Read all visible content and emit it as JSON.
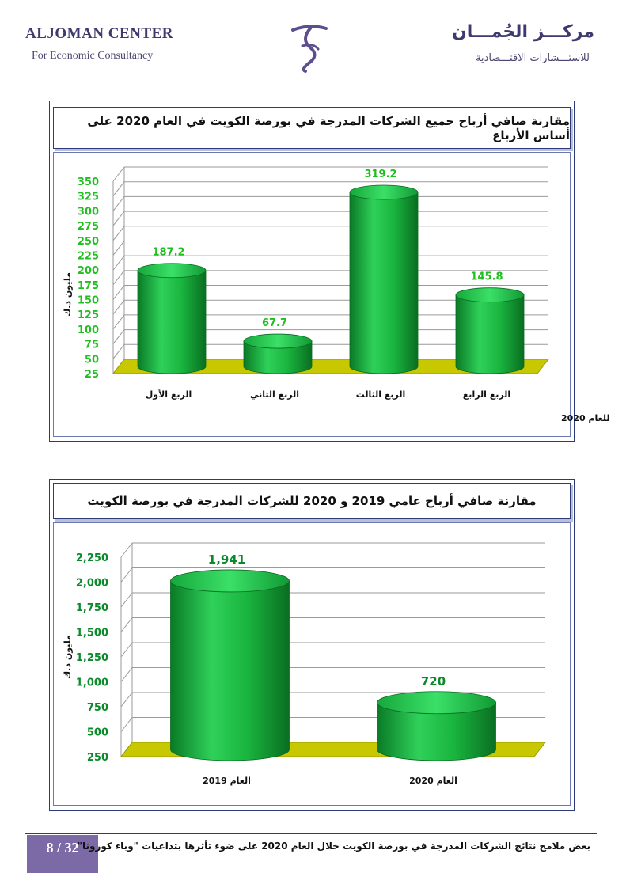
{
  "header": {
    "brand_en": "ALJOMAN CENTER",
    "brand_en_sub": "For Economic Consultancy",
    "brand_ar": "مركـــز الجُمـــان",
    "brand_ar_sub": "للاستـــشارات الاقتـــصادية",
    "logo_icon": "aljoman-logo-icon"
  },
  "chart_data": [
    {
      "type": "bar",
      "title": "مقارنة صافي أرباح جميع الشركات المدرجة في بورصة الكويت في العام 2020 على أساس الأرباع",
      "xlabel": "للعام 2020",
      "ylabel": "مليون د.ك",
      "categories": [
        "الربع الأول",
        "الربع الثاني",
        "الربع الثالث",
        "الربع الرابع"
      ],
      "values": [
        187.2,
        67.7,
        319.2,
        145.8
      ],
      "value_labels": [
        "187.2",
        "67.7",
        "319.2",
        "145.8"
      ],
      "ylim": [
        25,
        350
      ],
      "yticks": [
        "25",
        "50",
        "75",
        "100",
        "125",
        "150",
        "175",
        "200",
        "225",
        "250",
        "275",
        "300",
        "325",
        "350"
      ],
      "colors": {
        "bar": "#12a83a",
        "floor": "#c8c800",
        "tick_labels": "#1fbf1f"
      }
    },
    {
      "type": "bar",
      "title": "مقارنة صافي أرباح عامي 2019 و 2020 للشركات المدرجة في بورصة الكويت",
      "xlabel": "",
      "ylabel": "مليون د.ك",
      "categories": [
        "العام 2019",
        "العام 2020"
      ],
      "values": [
        1941,
        720
      ],
      "value_labels": [
        "1,941",
        "720"
      ],
      "ylim": [
        250,
        2250
      ],
      "yticks": [
        "250",
        "500",
        "750",
        "1,000",
        "1,250",
        "1,500",
        "1,750",
        "2,000",
        "2,250"
      ],
      "colors": {
        "bar": "#12a83a",
        "floor": "#c8c800",
        "tick_labels": "#0a8a2a"
      }
    }
  ],
  "footer": {
    "page": "8 / 32",
    "text": "بعض ملامح نتائج الشركات المدرجة في بورصة الكويت خلال العام 2020 على ضوء تأثرها بتداعيات \"وباء كورونا\""
  }
}
